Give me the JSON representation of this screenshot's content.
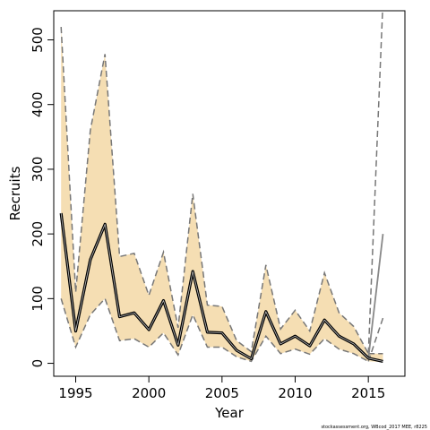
{
  "chart_data": {
    "type": "line",
    "xlabel": "Year",
    "ylabel": "Recruits",
    "xlim": [
      1993.5,
      2017.5
    ],
    "ylim": [
      -20,
      545
    ],
    "x_ticks": [
      1995,
      2000,
      2005,
      2010,
      2015
    ],
    "y_ticks": [
      0,
      100,
      200,
      300,
      400,
      500
    ],
    "grid": false,
    "x": [
      1994,
      1995,
      1996,
      1997,
      1998,
      1999,
      2000,
      2001,
      2002,
      2003,
      2004,
      2005,
      2006,
      2007,
      2008,
      2009,
      2010,
      2011,
      2012,
      2013,
      2014,
      2015
    ],
    "estimate": [
      232,
      50,
      160,
      215,
      72,
      78,
      52,
      97,
      28,
      142,
      48,
      47,
      20,
      7,
      80,
      30,
      42,
      27,
      67,
      42,
      30,
      8
    ],
    "ci_lower": [
      100,
      25,
      75,
      100,
      35,
      38,
      25,
      47,
      13,
      75,
      25,
      25,
      10,
      3,
      42,
      15,
      22,
      14,
      38,
      22,
      15,
      3
    ],
    "ci_upper": [
      520,
      110,
      360,
      478,
      165,
      170,
      105,
      172,
      55,
      262,
      90,
      88,
      35,
      18,
      152,
      53,
      82,
      50,
      140,
      78,
      57,
      15
    ],
    "projection": {
      "x": [
        2015,
        2016
      ],
      "estimate": [
        8,
        3
      ],
      "ci_lower": [
        3,
        2
      ],
      "ci_upper": [
        15,
        15
      ],
      "alt_estimate": [
        8,
        200
      ],
      "alt_lower": [
        3,
        70
      ],
      "alt_upper": [
        15,
        560
      ]
    },
    "colors": {
      "band": "#f5deb3",
      "estimate": "#000000",
      "ci": "#777777"
    },
    "footnote": "stockassessment.org, WBcod_2017 MEE, r8225"
  }
}
